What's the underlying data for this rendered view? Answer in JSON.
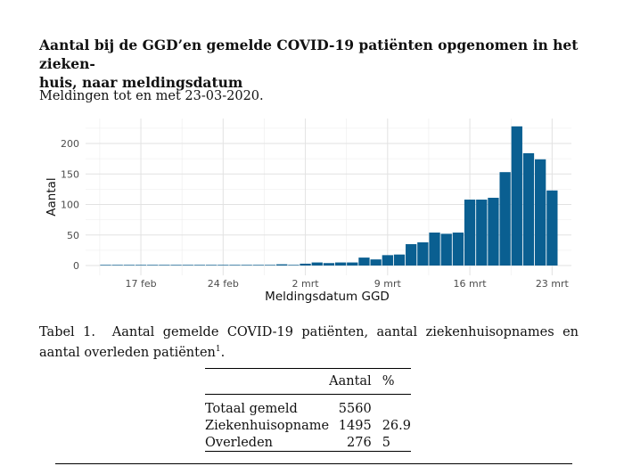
{
  "header": {
    "title": "Aantal bij de GGD’en gemelde COVID-19 patiënten opgenomen in het ziekenhuis, naar meldingsdatum",
    "title_line1": "Aantal bij de GGD’en gemelde COVID-19 patiënten opgenomen in het zieken-",
    "title_line2": "huis, naar meldingsdatum",
    "subtitle": "Meldingen tot en met 23-03-2020."
  },
  "chart_data": {
    "type": "bar",
    "xlabel": "Meldingsdatum GGD",
    "ylabel": "Aantal",
    "ylim": [
      0,
      230
    ],
    "yticks": [
      0,
      50,
      100,
      150,
      200
    ],
    "bar_color": "#0a5f91",
    "xtick_labels": [
      {
        "label": "17 feb",
        "date": "2020-02-17"
      },
      {
        "label": "24 feb",
        "date": "2020-02-24"
      },
      {
        "label": "2 mrt",
        "date": "2020-03-02"
      },
      {
        "label": "9 mrt",
        "date": "2020-03-09"
      },
      {
        "label": "16 mrt",
        "date": "2020-03-16"
      },
      {
        "label": "23 mrt",
        "date": "2020-03-23"
      }
    ],
    "categories": [
      "2020-02-14",
      "2020-02-15",
      "2020-02-16",
      "2020-02-17",
      "2020-02-18",
      "2020-02-19",
      "2020-02-20",
      "2020-02-21",
      "2020-02-22",
      "2020-02-23",
      "2020-02-24",
      "2020-02-25",
      "2020-02-26",
      "2020-02-27",
      "2020-02-28",
      "2020-02-29",
      "2020-03-01",
      "2020-03-02",
      "2020-03-03",
      "2020-03-04",
      "2020-03-05",
      "2020-03-06",
      "2020-03-07",
      "2020-03-08",
      "2020-03-09",
      "2020-03-10",
      "2020-03-11",
      "2020-03-12",
      "2020-03-13",
      "2020-03-14",
      "2020-03-15",
      "2020-03-16",
      "2020-03-17",
      "2020-03-18",
      "2020-03-19",
      "2020-03-20",
      "2020-03-21",
      "2020-03-22",
      "2020-03-23"
    ],
    "values": [
      1,
      1,
      1,
      1,
      1,
      1,
      1,
      1,
      1,
      1,
      1,
      1,
      1,
      1,
      1,
      2,
      1,
      3,
      5,
      4,
      5,
      5,
      13,
      10,
      17,
      18,
      35,
      38,
      54,
      52,
      54,
      108,
      108,
      111,
      153,
      228,
      184,
      174,
      123
    ]
  },
  "table": {
    "caption_prefix": "Tabel 1.",
    "caption_text": "Aantal gemelde COVID-19 patiënten, aantal ziekenhuisopnames en aantal overleden patiënten",
    "caption_sup": "1",
    "caption_end": ".",
    "headers": [
      "",
      "Aantal",
      "%"
    ],
    "rows": [
      {
        "label": "Totaal gemeld",
        "count": "5560",
        "pct": ""
      },
      {
        "label": "Ziekenhuisopname",
        "count": "1495",
        "pct": "26.9"
      },
      {
        "label": "Overleden",
        "count": "276",
        "pct": "5"
      }
    ]
  }
}
